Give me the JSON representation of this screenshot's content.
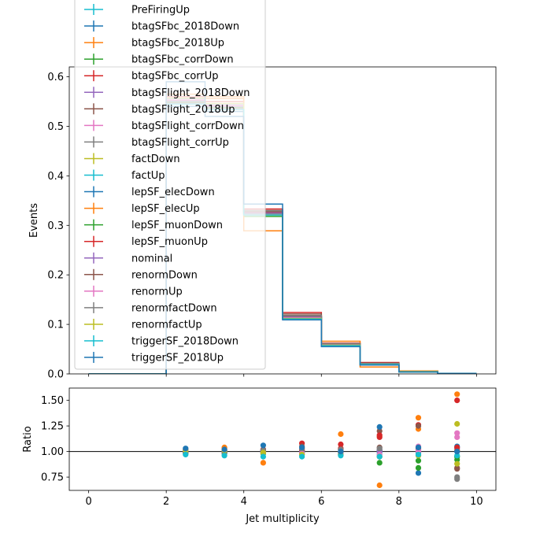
{
  "chart_data": [
    {
      "type": "line",
      "panel": "main",
      "drawstyle": "steps",
      "xlabel": "",
      "ylabel": "Events",
      "xlim": [
        -0.5,
        10.5
      ],
      "ylim": [
        0.0,
        0.62
      ],
      "x_edges": [
        0,
        1,
        2,
        3,
        4,
        5,
        6,
        7,
        8,
        9,
        10
      ],
      "yticks": [
        "0.0",
        "0.1",
        "0.2",
        "0.3",
        "0.4",
        "0.5",
        "0.6"
      ],
      "xticks": [
        "0",
        "2",
        "4",
        "6",
        "8",
        "10"
      ],
      "nominal_values": [
        0.0,
        0.0,
        0.55,
        0.54,
        0.325,
        0.115,
        0.06,
        0.02,
        0.005,
        0.001
      ],
      "legend_placement": "upper-left",
      "series": [
        {
          "name": "PreFiringUp",
          "color": "#17becf",
          "values": [
            0,
            0,
            0.556,
            0.545,
            0.325,
            0.114,
            0.059,
            0.019,
            0.005,
            0.001
          ]
        },
        {
          "name": "btagSFbc_2018Down",
          "color": "#1f77b4",
          "values": [
            0,
            0,
            0.54,
            0.53,
            0.327,
            0.112,
            0.058,
            0.02,
            0.004,
            0.001
          ]
        },
        {
          "name": "btagSFbc_2018Up",
          "color": "#ff7f0e",
          "values": [
            0,
            0,
            0.565,
            0.556,
            0.322,
            0.118,
            0.061,
            0.021,
            0.005,
            0.001
          ]
        },
        {
          "name": "btagSFbc_corrDown",
          "color": "#2ca02c",
          "values": [
            0,
            0,
            0.545,
            0.535,
            0.318,
            0.112,
            0.058,
            0.018,
            0.004,
            0.001
          ]
        },
        {
          "name": "btagSFbc_corrUp",
          "color": "#d62728",
          "values": [
            0,
            0,
            0.56,
            0.55,
            0.333,
            0.124,
            0.062,
            0.023,
            0.006,
            0.001
          ]
        },
        {
          "name": "btagSFlight_2018Down",
          "color": "#9467bd",
          "values": [
            0,
            0,
            0.552,
            0.54,
            0.326,
            0.114,
            0.06,
            0.02,
            0.005,
            0.001
          ]
        },
        {
          "name": "btagSFlight_2018Up",
          "color": "#8c564b",
          "values": [
            0,
            0,
            0.551,
            0.541,
            0.33,
            0.121,
            0.061,
            0.022,
            0.005,
            0.001
          ]
        },
        {
          "name": "btagSFlight_corrDown",
          "color": "#e377c2",
          "values": [
            0,
            0,
            0.555,
            0.543,
            0.325,
            0.116,
            0.06,
            0.02,
            0.005,
            0.001
          ]
        },
        {
          "name": "btagSFlight_corrUp",
          "color": "#7f7f7f",
          "values": [
            0,
            0,
            0.55,
            0.538,
            0.324,
            0.115,
            0.06,
            0.02,
            0.005,
            0.001
          ]
        },
        {
          "name": "factDown",
          "color": "#bcbd22",
          "values": [
            0,
            0,
            0.548,
            0.537,
            0.323,
            0.115,
            0.059,
            0.02,
            0.004,
            0.001
          ]
        },
        {
          "name": "factUp",
          "color": "#17becf",
          "values": [
            0,
            0,
            0.556,
            0.545,
            0.327,
            0.116,
            0.06,
            0.02,
            0.005,
            0.001
          ]
        },
        {
          "name": "lepSF_elecDown",
          "color": "#1f77b4",
          "values": [
            0,
            0,
            0.55,
            0.539,
            0.324,
            0.115,
            0.059,
            0.02,
            0.005,
            0.001
          ]
        },
        {
          "name": "lepSF_elecUp",
          "color": "#ff7f0e",
          "values": [
            0,
            0,
            0.552,
            0.56,
            0.289,
            0.116,
            0.066,
            0.014,
            0.006,
            0.001
          ]
        },
        {
          "name": "lepSF_muonDown",
          "color": "#2ca02c",
          "values": [
            0,
            0,
            0.549,
            0.538,
            0.323,
            0.114,
            0.059,
            0.019,
            0.004,
            0.001
          ]
        },
        {
          "name": "lepSF_muonUp",
          "color": "#d62728",
          "values": [
            0,
            0,
            0.553,
            0.542,
            0.327,
            0.116,
            0.06,
            0.021,
            0.005,
            0.001
          ]
        },
        {
          "name": "nominal",
          "color": "#9467bd",
          "values": [
            0,
            0,
            0.551,
            0.54,
            0.325,
            0.115,
            0.06,
            0.02,
            0.005,
            0.001
          ]
        },
        {
          "name": "renormDown",
          "color": "#8c564b",
          "values": [
            0,
            0,
            0.547,
            0.536,
            0.328,
            0.117,
            0.061,
            0.021,
            0.005,
            0.001
          ]
        },
        {
          "name": "renormUp",
          "color": "#e377c2",
          "values": [
            0,
            0,
            0.554,
            0.543,
            0.322,
            0.113,
            0.059,
            0.019,
            0.005,
            0.001
          ]
        },
        {
          "name": "renormfactDown",
          "color": "#7f7f7f",
          "values": [
            0,
            0,
            0.546,
            0.535,
            0.329,
            0.118,
            0.061,
            0.021,
            0.005,
            0.001
          ]
        },
        {
          "name": "renormfactUp",
          "color": "#bcbd22",
          "values": [
            0,
            0,
            0.557,
            0.546,
            0.321,
            0.112,
            0.058,
            0.019,
            0.005,
            0.001
          ]
        },
        {
          "name": "triggerSF_2018Down",
          "color": "#17becf",
          "values": [
            0,
            0,
            0.545,
            0.534,
            0.321,
            0.111,
            0.057,
            0.019,
            0.004,
            0.001
          ]
        },
        {
          "name": "triggerSF_2018Up",
          "color": "#1f77b4",
          "values": [
            0,
            0,
            0.59,
            0.52,
            0.343,
            0.109,
            0.055,
            0.018,
            0.004,
            0.001
          ]
        }
      ]
    },
    {
      "type": "scatter",
      "panel": "ratio",
      "xlabel": "Jet multiplicity",
      "ylabel": "Ratio",
      "xlim": [
        -0.5,
        10.5
      ],
      "ylim": [
        0.62,
        1.62
      ],
      "reference_line": 1.0,
      "xticks": [
        "0",
        "2",
        "4",
        "6",
        "8",
        "10"
      ],
      "yticks": [
        "0.75",
        "1.00",
        "1.25",
        "1.50"
      ],
      "x": [
        2.5,
        3.5,
        4.5,
        5.5,
        6.5,
        7.5,
        8.5,
        9.5
      ],
      "series": [
        {
          "name": "PreFiringUp",
          "color": "#17becf",
          "values": [
            1.01,
            1.01,
            1.0,
            0.99,
            0.98,
            0.97,
            0.96,
            0.95
          ]
        },
        {
          "name": "btagSFbc_2018Down",
          "color": "#1f77b4",
          "values": [
            0.98,
            0.98,
            1.01,
            0.97,
            0.97,
            1.0,
            0.79,
            1.05
          ]
        },
        {
          "name": "btagSFbc_2018Up",
          "color": "#ff7f0e",
          "values": [
            1.02,
            1.03,
            0.99,
            1.03,
            1.02,
            1.15,
            1.22,
            1.56
          ]
        },
        {
          "name": "btagSFbc_corrDown",
          "color": "#2ca02c",
          "values": [
            0.99,
            0.99,
            0.98,
            0.97,
            0.97,
            0.89,
            0.84,
            0.92
          ]
        },
        {
          "name": "btagSFbc_corrUp",
          "color": "#d62728",
          "values": [
            1.02,
            1.02,
            1.02,
            1.08,
            1.03,
            1.14,
            1.26,
            1.5
          ]
        },
        {
          "name": "btagSFlight_2018Down",
          "color": "#9467bd",
          "values": [
            1.0,
            1.0,
            1.0,
            0.99,
            1.0,
            1.0,
            1.02,
            1.03
          ]
        },
        {
          "name": "btagSFlight_2018Up",
          "color": "#8c564b",
          "values": [
            1.0,
            1.0,
            1.02,
            1.05,
            1.02,
            1.2,
            1.25,
            0.84
          ]
        },
        {
          "name": "btagSFlight_corrDown",
          "color": "#e377c2",
          "values": [
            1.01,
            1.01,
            1.0,
            1.01,
            1.0,
            1.02,
            1.05,
            1.18
          ]
        },
        {
          "name": "btagSFlight_corrUp",
          "color": "#7f7f7f",
          "values": [
            1.0,
            1.0,
            1.0,
            1.0,
            1.0,
            1.01,
            1.02,
            0.75
          ]
        },
        {
          "name": "factDown",
          "color": "#bcbd22",
          "values": [
            0.99,
            0.99,
            0.99,
            1.0,
            0.99,
            1.01,
            1.0,
            1.27
          ]
        },
        {
          "name": "factUp",
          "color": "#17becf",
          "values": [
            1.01,
            1.01,
            1.01,
            1.01,
            1.0,
            0.99,
            0.98,
            1.0
          ]
        },
        {
          "name": "lepSF_elecDown",
          "color": "#1f77b4",
          "values": [
            1.0,
            1.0,
            1.0,
            1.0,
            0.99,
            1.01,
            1.0,
            1.01
          ]
        },
        {
          "name": "lepSF_elecUp",
          "color": "#ff7f0e",
          "values": [
            1.0,
            1.04,
            0.89,
            1.01,
            1.17,
            0.67,
            1.33,
            1.01
          ]
        },
        {
          "name": "lepSF_muonDown",
          "color": "#2ca02c",
          "values": [
            1.0,
            1.0,
            0.99,
            0.99,
            0.99,
            0.95,
            0.91,
            0.95
          ]
        },
        {
          "name": "lepSF_muonUp",
          "color": "#d62728",
          "values": [
            1.0,
            1.0,
            1.01,
            1.01,
            1.07,
            1.16,
            1.02,
            1.04
          ]
        },
        {
          "name": "nominal",
          "color": "#9467bd",
          "values": [
            1.0,
            1.0,
            1.0,
            1.0,
            1.0,
            1.0,
            1.0,
            1.0
          ]
        },
        {
          "name": "renormDown",
          "color": "#8c564b",
          "values": [
            0.99,
            0.99,
            1.01,
            1.02,
            1.02,
            1.04,
            1.03,
            0.83
          ]
        },
        {
          "name": "renormUp",
          "color": "#e377c2",
          "values": [
            1.01,
            1.01,
            0.99,
            0.98,
            0.98,
            0.97,
            1.01,
            1.14
          ]
        },
        {
          "name": "renormfactDown",
          "color": "#7f7f7f",
          "values": [
            0.99,
            0.99,
            1.01,
            1.03,
            1.02,
            1.03,
            1.04,
            0.73
          ]
        },
        {
          "name": "renormfactUp",
          "color": "#bcbd22",
          "values": [
            1.01,
            1.01,
            0.99,
            0.97,
            0.97,
            0.95,
            0.96,
            0.88
          ]
        },
        {
          "name": "triggerSF_2018Down",
          "color": "#17becf",
          "values": [
            0.97,
            0.96,
            0.95,
            0.95,
            0.96,
            0.95,
            0.97,
            0.96
          ]
        },
        {
          "name": "triggerSF_2018Up",
          "color": "#1f77b4",
          "values": [
            1.03,
            1.02,
            1.06,
            1.04,
            1.0,
            1.24,
            1.04,
            1.0
          ]
        }
      ]
    }
  ]
}
